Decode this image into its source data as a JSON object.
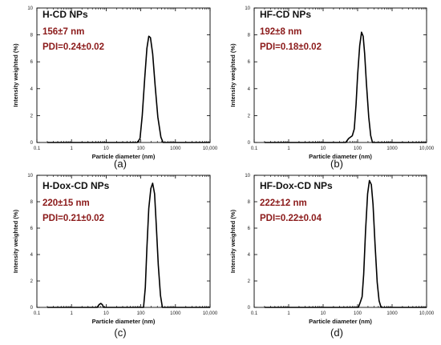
{
  "chart_data": [
    {
      "type": "line",
      "title": "H-CD NPs",
      "annotations": [
        "156±7 nm",
        "PDI=0.24±0.02"
      ],
      "xlabel": "Particle diameter (nm)",
      "ylabel": "Intensity weighted (%)",
      "xscale": "log",
      "xlim": [
        0.1,
        10000
      ],
      "ylim": [
        0,
        10
      ],
      "xticks": [
        "0.1",
        "1",
        "10",
        "100",
        "1000",
        "10,000"
      ],
      "yticks": [
        "0",
        "2",
        "4",
        "6",
        "8",
        "10"
      ],
      "grid": false,
      "panel_label": "(a)",
      "series": [
        {
          "x": [
            0.2,
            80,
            95,
            110,
            130,
            150,
            170,
            190,
            220,
            260,
            310,
            380,
            440,
            10000
          ],
          "y": [
            0,
            0,
            0.3,
            2.0,
            4.8,
            7.0,
            7.9,
            7.8,
            6.6,
            4.2,
            1.9,
            0.4,
            0,
            0
          ]
        }
      ]
    },
    {
      "type": "line",
      "title": "HF-CD NPs",
      "annotations": [
        "192±8 nm",
        "PDI=0.18±0.02"
      ],
      "xlabel": "Particle diameter (nm)",
      "ylabel": "Intensity weighted (%)",
      "xscale": "log",
      "xlim": [
        0.1,
        10000
      ],
      "ylim": [
        0,
        10
      ],
      "xticks": [
        "0.1",
        "1",
        "10",
        "100",
        "1000",
        "10,000"
      ],
      "yticks": [
        "0",
        "2",
        "4",
        "6",
        "8",
        "10"
      ],
      "grid": false,
      "panel_label": "(b)",
      "series": [
        {
          "x": [
            0.2,
            45,
            55,
            70,
            80,
            90,
            100,
            115,
            130,
            145,
            160,
            180,
            210,
            240,
            270,
            10000
          ],
          "y": [
            0,
            0,
            0.3,
            0.5,
            1.0,
            2.8,
            5.0,
            7.2,
            8.2,
            7.9,
            6.6,
            4.4,
            1.9,
            0.5,
            0,
            0
          ]
        }
      ]
    },
    {
      "type": "line",
      "title": "H-Dox-CD NPs",
      "annotations": [
        "220±15 nm",
        "PDI=0.21±0.02"
      ],
      "xlabel": "Particle diameter (nm)",
      "ylabel": "Intensity weighted (%)",
      "xscale": "log",
      "xlim": [
        0.1,
        10000
      ],
      "ylim": [
        0,
        10
      ],
      "xticks": [
        "0.1",
        "1",
        "10",
        "100",
        "1000",
        "10,000"
      ],
      "yticks": [
        "0",
        "2",
        "4",
        "6",
        "8",
        "10"
      ],
      "grid": false,
      "panel_label": "(c)",
      "series": [
        {
          "x": [
            0.2,
            5.5,
            6.2,
            7,
            7.8,
            8.5,
            120,
            135,
            150,
            170,
            195,
            220,
            250,
            280,
            320,
            370,
            420,
            10000
          ],
          "y": [
            0,
            0,
            0.2,
            0.3,
            0.2,
            0,
            0,
            1.5,
            4.5,
            7.5,
            9.0,
            9.4,
            8.6,
            6.2,
            3.2,
            0.9,
            0,
            0
          ]
        }
      ]
    },
    {
      "type": "line",
      "title": "HF-Dox-CD NPs",
      "annotations": [
        "222±12 nm",
        "PDI=0.22±0.04"
      ],
      "xlabel": "Particle diameter (nm)",
      "ylabel": "Intensity weighted (%)",
      "xscale": "log",
      "xlim": [
        0.1,
        10000
      ],
      "ylim": [
        0,
        10
      ],
      "xticks": [
        "0.1",
        "1",
        "10",
        "100",
        "1000",
        "10,000"
      ],
      "yticks": [
        "0",
        "2",
        "4",
        "6",
        "8",
        "10"
      ],
      "grid": false,
      "panel_label": "(d)",
      "series": [
        {
          "x": [
            0.2,
            105,
            120,
            135,
            150,
            170,
            195,
            220,
            250,
            280,
            320,
            370,
            420,
            480,
            10000
          ],
          "y": [
            0,
            0,
            0.4,
            0.8,
            2.5,
            5.8,
            8.6,
            9.6,
            9.3,
            7.8,
            4.8,
            1.9,
            0.5,
            0,
            0
          ]
        }
      ]
    }
  ]
}
